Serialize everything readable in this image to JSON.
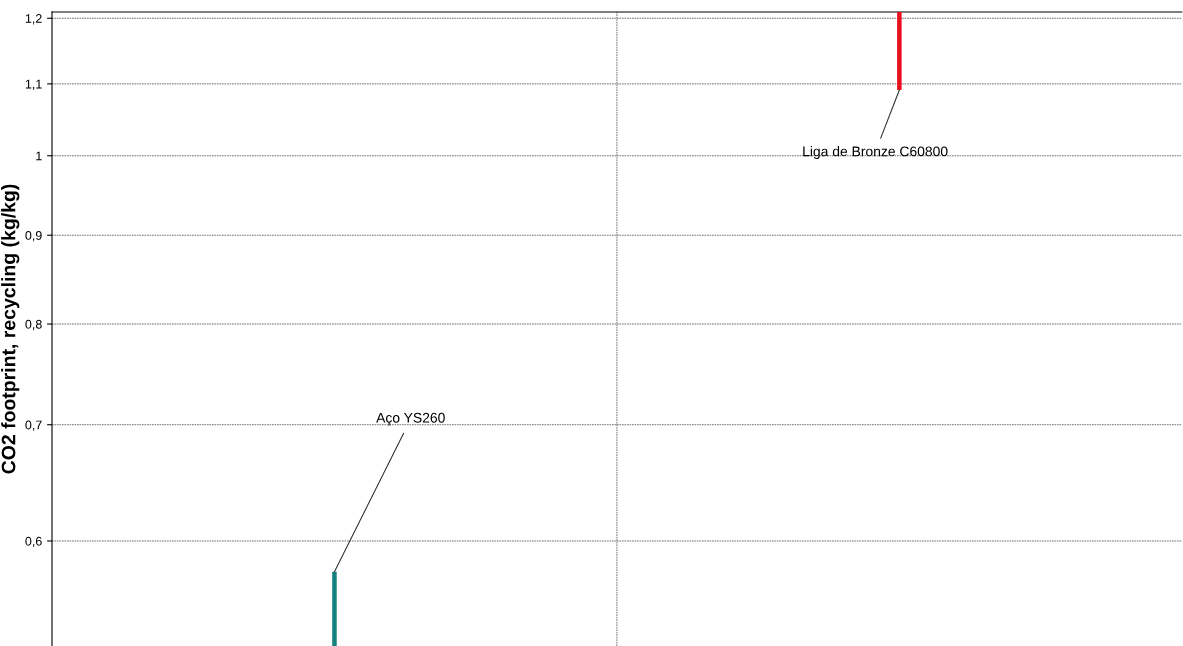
{
  "chart_data": {
    "type": "bar",
    "ylabel": "CO2 footprint, recycling (kg/kg)",
    "categories": [
      null,
      null
    ],
    "base": [
      0.522,
      1.091
    ],
    "values": [
      0.054,
      0.119
    ],
    "colors": [
      "#168080",
      "#e8101c"
    ],
    "log": "y",
    "ylim": [
      0.522,
      1.21
    ],
    "yticks": [
      {
        "value": 0.6,
        "label": "0,6"
      },
      {
        "value": 0.7,
        "label": "0,7"
      },
      {
        "value": 0.8,
        "label": "0,8"
      },
      {
        "value": 0.9,
        "label": "0,9"
      },
      1,
      {
        "value": 1.1,
        "label": "1,1"
      },
      {
        "value": 1.2,
        "label": "1,2"
      }
    ],
    "grid": true,
    "tick_labels": "y",
    "annotations": [
      "Aço YS260",
      "Liga de Bronze C60800"
    ]
  }
}
